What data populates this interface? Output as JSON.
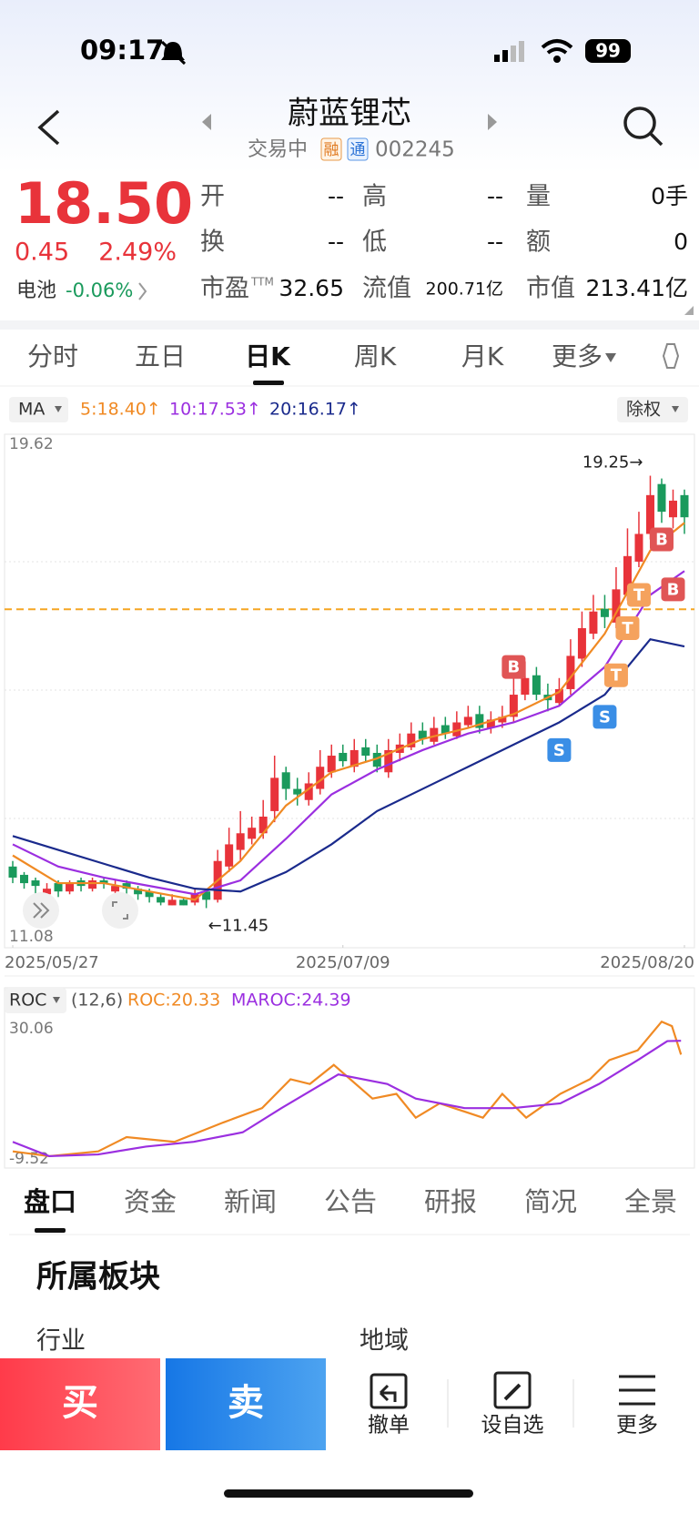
{
  "status_bar": {
    "time": "09:17",
    "battery": "99"
  },
  "header": {
    "title": "蔚蓝锂芯",
    "status": "交易中",
    "badges": [
      "融",
      "通"
    ],
    "code": "002245"
  },
  "quote": {
    "price": "18.50",
    "change": "0.45",
    "change_pct": "2.49%",
    "sector": "电池",
    "sector_change": "-0.06%",
    "fields": [
      [
        "开",
        "--"
      ],
      [
        "高",
        "--"
      ],
      [
        "量",
        "0手"
      ],
      [
        "换",
        "--"
      ],
      [
        "低",
        "--"
      ],
      [
        "额",
        "0"
      ],
      [
        "市盈",
        "32.65"
      ],
      [
        "流值",
        "200.71亿"
      ],
      [
        "市值",
        "213.41亿"
      ]
    ],
    "ttm": "TTM"
  },
  "tabs": [
    "分时",
    "五日",
    "日K",
    "周K",
    "月K",
    "更多"
  ],
  "ma_bar": {
    "indicator": "MA",
    "items": [
      "5:18.40↑",
      "10:17.53↑",
      "20:16.17↑"
    ],
    "adjust": "除权"
  },
  "chart_data": [
    {
      "type": "candlestick",
      "open": [
        12.2,
        12.05,
        11.95,
        11.7,
        11.9,
        11.75,
        11.95,
        11.8,
        11.95,
        11.75,
        11.9,
        11.8,
        11.75,
        11.65,
        11.5,
        11.6,
        11.55,
        11.75,
        11.6,
        12.2,
        12.5,
        12.7,
        12.8,
        13.2,
        13.9,
        13.6,
        13.4,
        13.6,
        13.9,
        14.25,
        14.0,
        14.35,
        14.25,
        13.9,
        14.25,
        14.35,
        14.65,
        14.45,
        14.75,
        14.55,
        14.75,
        14.95,
        14.7,
        14.8,
        14.9,
        15.3,
        15.65,
        15.3,
        15.15,
        15.4,
        15.95,
        16.4,
        16.85,
        16.6,
        17.1,
        17.7,
        18.2,
        19.1,
        18.5,
        18.9
      ],
      "high": [
        12.3,
        12.1,
        12.0,
        11.9,
        11.95,
        11.95,
        12.0,
        12.0,
        12.0,
        11.95,
        11.95,
        11.85,
        11.8,
        11.7,
        11.7,
        11.65,
        11.8,
        11.8,
        12.5,
        12.9,
        13.2,
        13.1,
        13.4,
        14.2,
        14.0,
        13.8,
        13.9,
        14.3,
        14.4,
        14.4,
        14.5,
        14.5,
        14.4,
        14.5,
        14.6,
        14.8,
        14.8,
        14.9,
        14.9,
        15.0,
        15.1,
        15.1,
        15.0,
        15.1,
        15.6,
        15.9,
        15.8,
        15.5,
        15.6,
        16.3,
        16.8,
        17.1,
        17.1,
        17.6,
        18.3,
        18.6,
        19.25,
        19.2,
        19.0,
        19.0
      ],
      "low": [
        11.9,
        11.8,
        11.7,
        11.6,
        11.65,
        11.7,
        11.75,
        11.75,
        11.8,
        11.7,
        11.7,
        11.6,
        11.55,
        11.5,
        11.5,
        11.5,
        11.5,
        11.45,
        11.55,
        12.1,
        12.3,
        12.6,
        12.7,
        13.0,
        13.4,
        13.3,
        13.3,
        13.5,
        13.8,
        14.0,
        13.9,
        14.1,
        13.9,
        13.8,
        14.1,
        14.3,
        14.4,
        14.4,
        14.5,
        14.5,
        14.7,
        14.6,
        14.6,
        14.7,
        14.8,
        15.2,
        15.2,
        15.0,
        15.1,
        15.3,
        15.8,
        16.3,
        16.5,
        16.5,
        17.0,
        17.6,
        18.1,
        18.4,
        18.3,
        18.2
      ],
      "close": [
        12.0,
        11.9,
        11.85,
        11.8,
        11.75,
        11.9,
        11.85,
        11.95,
        11.9,
        11.85,
        11.8,
        11.7,
        11.65,
        11.55,
        11.6,
        11.5,
        11.7,
        11.6,
        12.3,
        12.6,
        12.8,
        12.9,
        13.1,
        13.8,
        13.6,
        13.5,
        13.7,
        14.0,
        14.2,
        14.1,
        14.3,
        14.2,
        14.0,
        14.3,
        14.4,
        14.6,
        14.5,
        14.7,
        14.6,
        14.8,
        14.9,
        14.7,
        14.85,
        14.9,
        15.3,
        15.6,
        15.3,
        15.2,
        15.4,
        16.0,
        16.5,
        16.8,
        16.7,
        17.2,
        17.8,
        18.2,
        18.9,
        18.6,
        18.8,
        18.5
      ],
      "up_color": "#e8333a",
      "down_color": "#1a9a5c",
      "series": [
        {
          "name": "5",
          "color": "#f08a24",
          "x": [
            0,
            4,
            8,
            12,
            16,
            20,
            24,
            28,
            32,
            36,
            40,
            44,
            48,
            52,
            56,
            59
          ],
          "values": [
            12.4,
            11.9,
            11.9,
            11.75,
            11.6,
            12.3,
            13.3,
            13.9,
            14.15,
            14.5,
            14.7,
            14.95,
            15.35,
            16.4,
            17.9,
            18.4
          ]
        },
        {
          "name": "10",
          "color": "#9b2fe0",
          "x": [
            0,
            4,
            8,
            12,
            16,
            20,
            24,
            28,
            32,
            36,
            40,
            44,
            48,
            52,
            56,
            59
          ],
          "values": [
            12.6,
            12.2,
            12.0,
            11.85,
            11.7,
            11.95,
            12.7,
            13.5,
            13.95,
            14.3,
            14.6,
            14.8,
            15.1,
            15.8,
            17.1,
            17.53
          ]
        },
        {
          "name": "20",
          "color": "#1a2a8c",
          "x": [
            0,
            4,
            8,
            12,
            16,
            20,
            24,
            28,
            32,
            36,
            40,
            44,
            48,
            52,
            56,
            59
          ],
          "values": [
            12.75,
            12.5,
            12.25,
            12.0,
            11.8,
            11.75,
            12.1,
            12.6,
            13.2,
            13.6,
            14.0,
            14.4,
            14.8,
            15.3,
            16.3,
            16.17
          ]
        }
      ],
      "ref_line": 16.84,
      "ylim": [
        11.08,
        19.62
      ],
      "yticks": [
        19.62,
        11.08
      ],
      "xlim": [
        0,
        59
      ],
      "xticks": [
        {
          "value": 0,
          "label": "2025/05/27"
        },
        {
          "value": 29,
          "label": "2025/07/09"
        },
        {
          "value": 59,
          "label": "2025/08/20"
        }
      ],
      "annotations": [
        {
          "text": "19.25→",
          "x": 56,
          "y": 19.25
        },
        {
          "text": "←11.45",
          "x": 17,
          "y": 11.45
        }
      ],
      "signals": [
        {
          "label": "B",
          "x": 44,
          "y": 15.8,
          "color": "#e05555"
        },
        {
          "label": "S",
          "x": 48,
          "y": 14.3,
          "color": "#3a8ee6"
        },
        {
          "label": "S",
          "x": 52,
          "y": 14.9,
          "color": "#3a8ee6"
        },
        {
          "label": "T",
          "x": 53,
          "y": 15.65,
          "color": "#f5a25d"
        },
        {
          "label": "T",
          "x": 54,
          "y": 16.5,
          "color": "#f5a25d"
        },
        {
          "label": "T",
          "x": 55,
          "y": 17.1,
          "color": "#f5a25d"
        },
        {
          "label": "B",
          "x": 57,
          "y": 18.1,
          "color": "#e05555"
        },
        {
          "label": "B",
          "x": 58,
          "y": 17.2,
          "color": "#e05555"
        }
      ]
    },
    {
      "type": "line",
      "title": "ROC",
      "params": "(12,6)",
      "legend": [
        "ROC:20.33",
        "MAROC:24.39"
      ],
      "series": [
        {
          "name": "ROC",
          "color": "#f08a24",
          "x": [
            0,
            3.2,
            7.5,
            10,
            14.2,
            18.5,
            21.9,
            24.4,
            26.1,
            28.2,
            31.6,
            33.7,
            35.4,
            37.5,
            41.3,
            43,
            45.1,
            48.1,
            50.7,
            52.4,
            54.9,
            57,
            57.9,
            58.7
          ],
          "values": [
            -8.1,
            -9.5,
            -8.1,
            -3.9,
            -5.3,
            0.4,
            4.6,
            13.1,
            11.7,
            17.3,
            7.4,
            8.8,
            1.8,
            6.0,
            1.8,
            8.8,
            1.8,
            8.8,
            13.1,
            18.7,
            21.6,
            30.0,
            28.7,
            20.33
          ]
        },
        {
          "name": "MAROC",
          "color": "#9b2fe0",
          "x": [
            0,
            3.2,
            7.5,
            11.7,
            15.9,
            20.2,
            23.6,
            28.6,
            32.9,
            35.4,
            39.7,
            43.9,
            48.1,
            51.5,
            54.9,
            57.5,
            58.7
          ],
          "values": [
            -5.3,
            -9.5,
            -9.0,
            -6.7,
            -5.3,
            -2.5,
            4.6,
            14.5,
            11.7,
            7.4,
            4.6,
            4.6,
            6.0,
            11.7,
            18.7,
            24.3,
            24.39
          ]
        }
      ],
      "ylim": [
        -9.52,
        30.06
      ],
      "yticks": [
        30.06,
        -9.52
      ],
      "xlim": [
        0,
        59
      ]
    }
  ],
  "detail_tabs": [
    "盘口",
    "资金",
    "新闻",
    "公告",
    "研报",
    "简况",
    "全景"
  ],
  "section": {
    "title": "所属板块",
    "labels": [
      "行业",
      "地域"
    ]
  },
  "footer": {
    "buy": "买",
    "sell": "卖",
    "actions": [
      "撤单",
      "设自选",
      "更多"
    ]
  }
}
